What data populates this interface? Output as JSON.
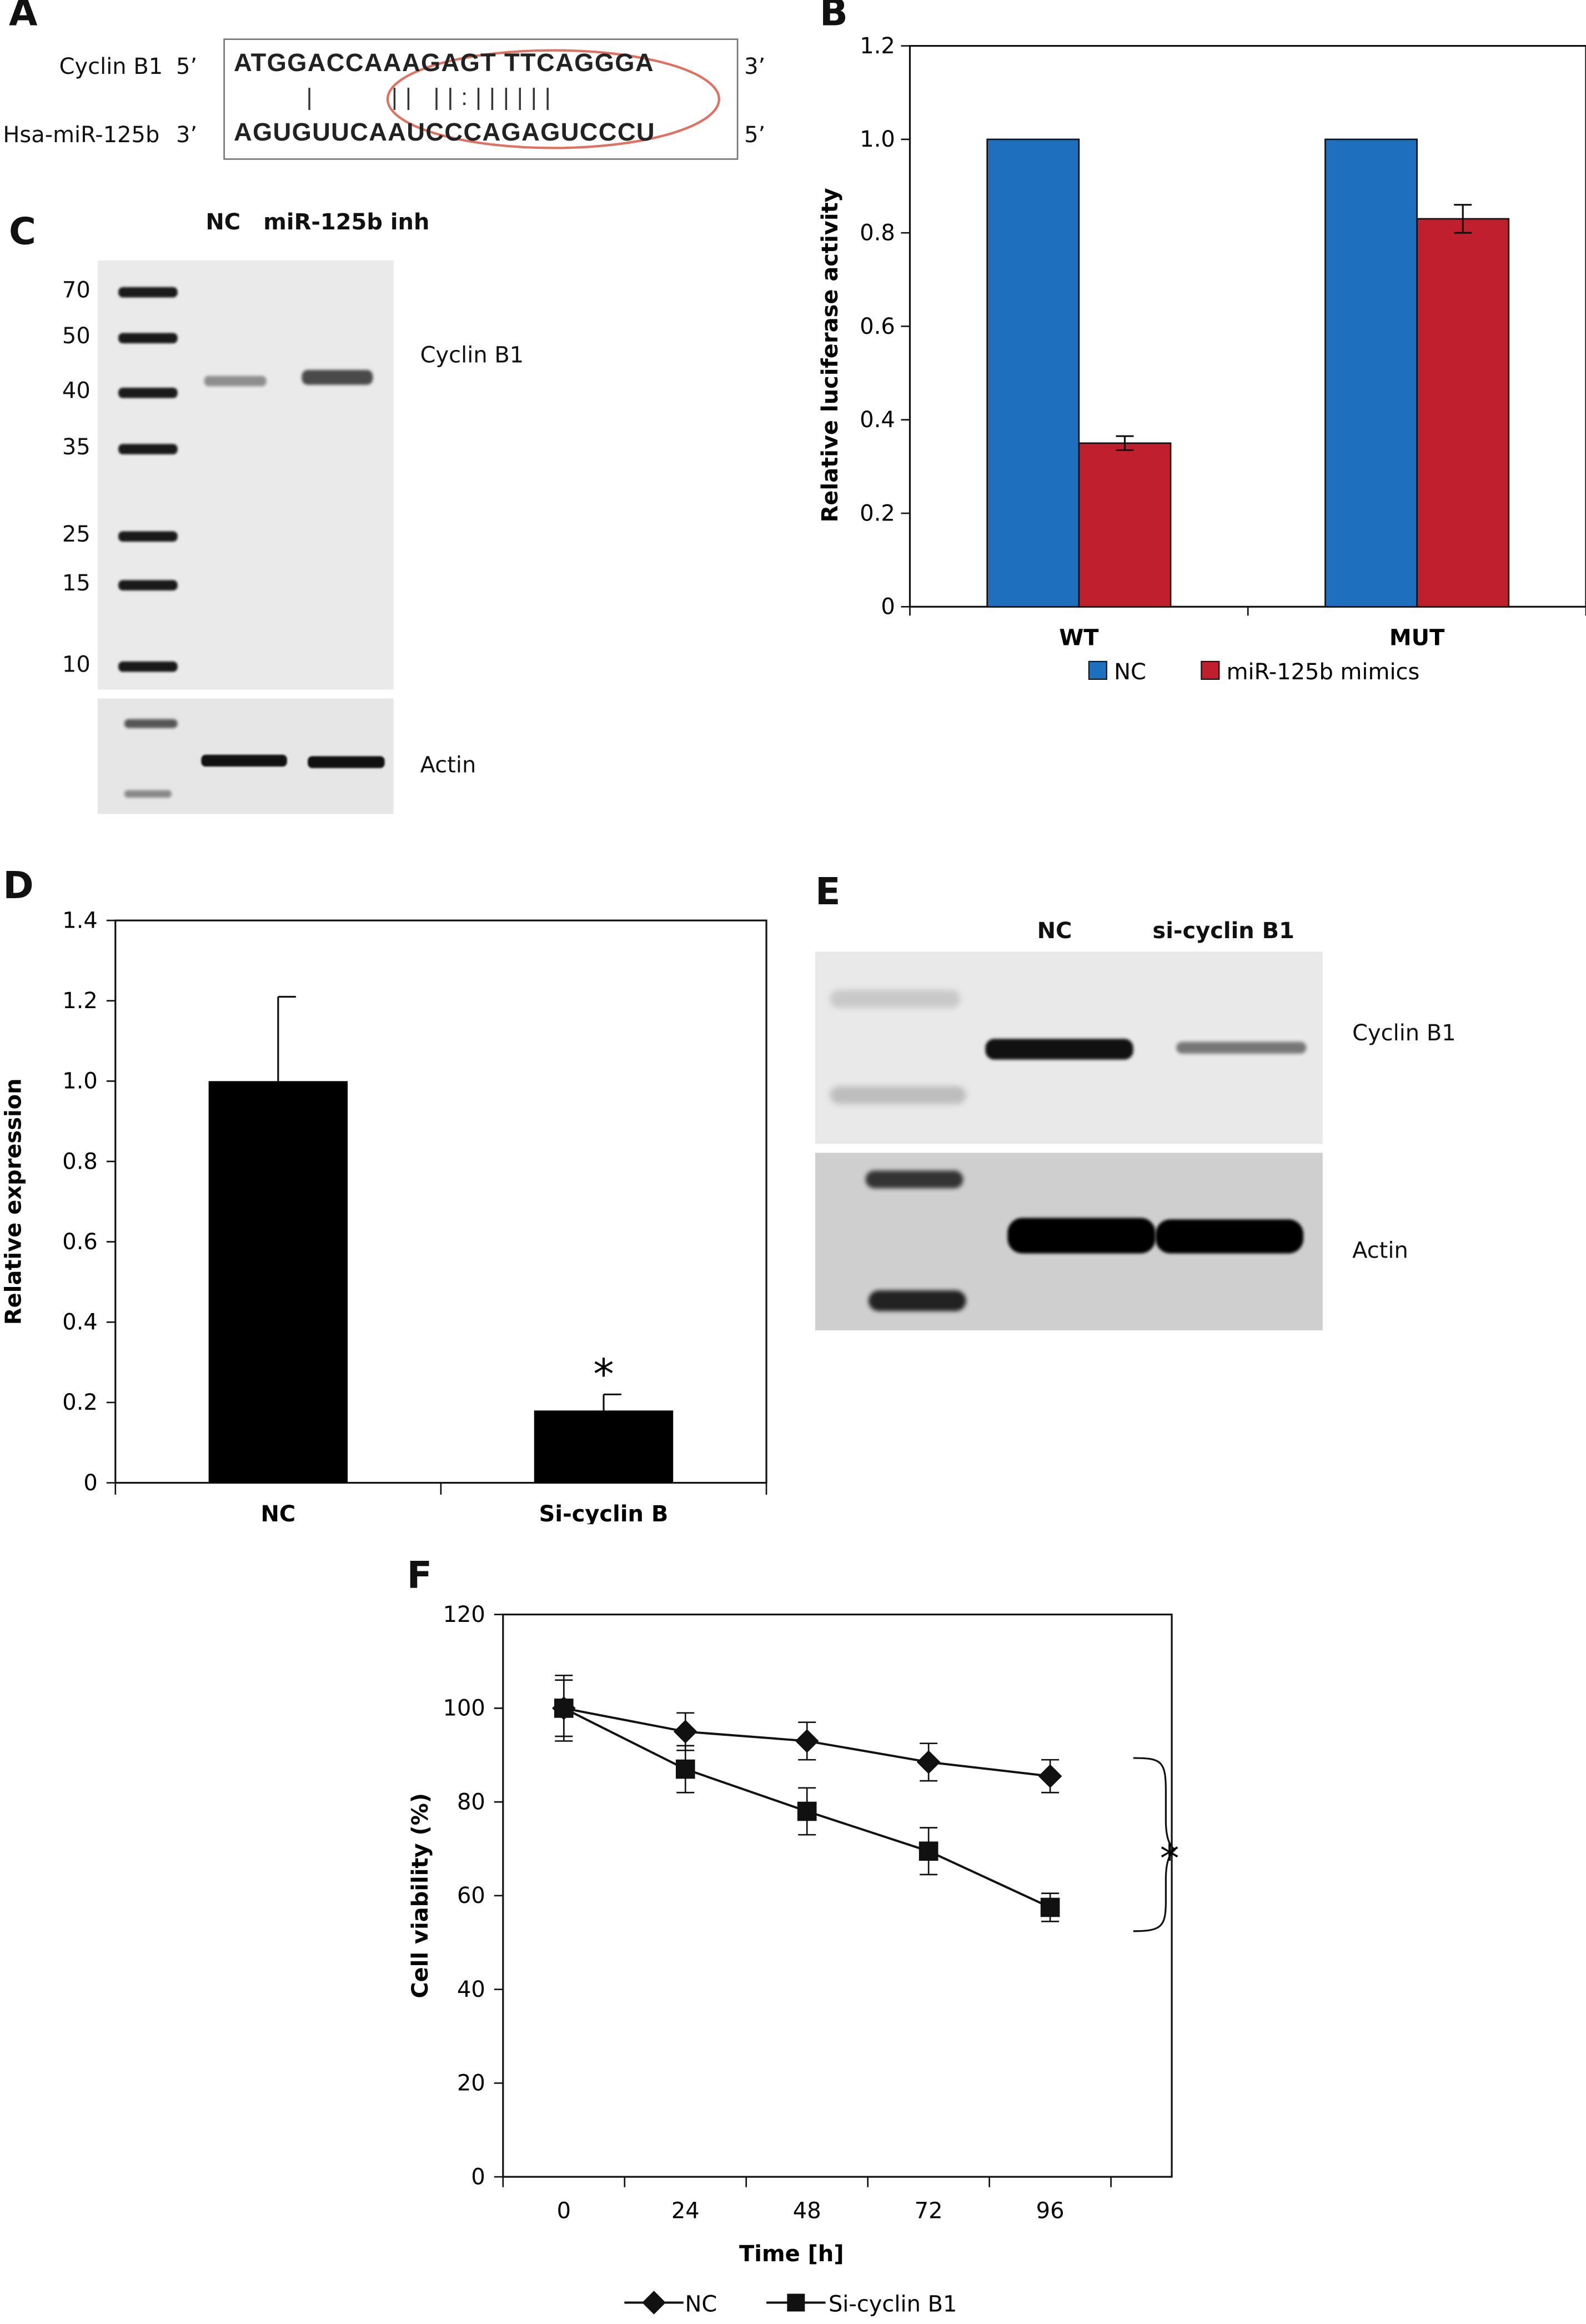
{
  "panels": {
    "a": "A",
    "b": "B",
    "c": "C",
    "d": "D",
    "e": "E",
    "f": "F"
  },
  "panel_a": {
    "row1_name": "Cyclin B1",
    "row1_left_end": "5’",
    "row1_seq": "ATGGACCAAAGAGT TTCAGGGA",
    "row1_right_end": "3’",
    "row2_name": "Hsa-miR-125b",
    "row2_left_end": "3’",
    "row2_seq": "AGUGUUCAAUCCCAGAGUCCCU",
    "row2_right_end": "5’",
    "pairing": "|     || ||:||||||",
    "oval_color": "#e07060"
  },
  "panel_c": {
    "lane_nc": "NC",
    "lane_inh": "miR-125b inh",
    "ladder": [
      "70",
      "50",
      "40",
      "35",
      "25",
      "15",
      "10"
    ],
    "band_top": "Cyclin B1",
    "band_bottom": "Actin"
  },
  "panel_e": {
    "lane_nc": "NC",
    "lane_si": "si-cyclin B1",
    "band_top": "Cyclin B1",
    "band_bottom": "Actin"
  },
  "chart_data": [
    {
      "panel": "B",
      "type": "bar",
      "categories": [
        "WT",
        "MUT"
      ],
      "series": [
        {
          "name": "NC",
          "values": [
            1.0,
            1.0
          ],
          "errors": [
            0,
            0
          ],
          "color": "#1f6fbf"
        },
        {
          "name": "miR-125b mimics",
          "values": [
            0.35,
            0.83
          ],
          "errors": [
            0.015,
            0.03
          ],
          "color": "#c0202e"
        }
      ],
      "ylabel": "Relative luciferase activity",
      "ylim": [
        0,
        1.2
      ],
      "yticks": [
        "0",
        "0.2",
        "0.4",
        "0.6",
        "0.8",
        "1.0",
        "1.2"
      ],
      "legend": "bottom"
    },
    {
      "panel": "D",
      "type": "bar",
      "categories": [
        "NC",
        "Si-cyclin B"
      ],
      "values": [
        1.0,
        0.18
      ],
      "errors": [
        0.21,
        0.04
      ],
      "significance": [
        "",
        "*"
      ],
      "color": "#000000",
      "ylabel": "Relative expression",
      "ylim": [
        0,
        1.4
      ],
      "yticks": [
        "0",
        "0.2",
        "0.4",
        "0.6",
        "0.8",
        "1.0",
        "1.2",
        "1.4"
      ]
    },
    {
      "panel": "F",
      "type": "line",
      "x": [
        0,
        24,
        48,
        72,
        96
      ],
      "xticks": [
        "0",
        "24",
        "48",
        "72",
        "96"
      ],
      "series": [
        {
          "name": "NC",
          "marker": "diamond",
          "values": [
            100,
            95,
            93,
            88.5,
            85.5
          ],
          "errors": [
            6,
            4,
            4,
            4,
            3.5
          ]
        },
        {
          "name": "Si-cyclin B1",
          "marker": "square",
          "values": [
            100,
            87,
            78,
            69.5,
            57.5
          ],
          "errors": [
            7,
            5,
            5,
            5,
            3
          ]
        }
      ],
      "significance": "*",
      "xlabel": "Time [h]",
      "ylabel": "Cell viability (%)",
      "ylim": [
        0,
        120
      ],
      "yticks": [
        "0",
        "20",
        "40",
        "60",
        "80",
        "100",
        "120"
      ],
      "legend": "bottom"
    }
  ]
}
